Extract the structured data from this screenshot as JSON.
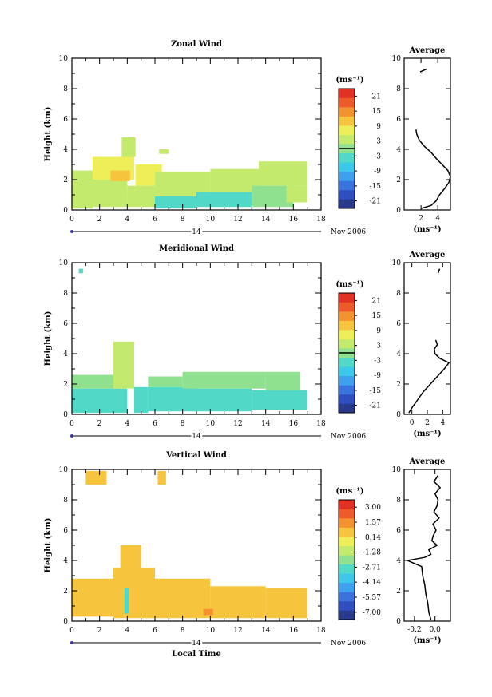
{
  "figure": {
    "colorbar_unit": "(ms⁻¹)",
    "average_title": "Average",
    "height_label": "Height (km)",
    "date_day": "14",
    "date_month": "Nov 2006",
    "local_time_label": "Local Time"
  },
  "chart_data": [
    {
      "type": "heatmap",
      "title": "Zonal Wind",
      "xlabel": "",
      "ylabel": "Height (km)",
      "xlim": [
        0,
        18
      ],
      "ylim": [
        0,
        10
      ],
      "x_ticks": [
        "0",
        "2",
        "4",
        "6",
        "8",
        "10",
        "12",
        "14",
        "16",
        "18"
      ],
      "y_ticks": [
        "0",
        "2",
        "4",
        "6",
        "8",
        "10"
      ],
      "colorbar": {
        "unit": "(ms⁻¹)",
        "ticks": [
          "21",
          "15",
          "9",
          "3",
          "-3",
          "-9",
          "-15",
          "-21"
        ],
        "range": [
          -24,
          24
        ],
        "marker": 0
      },
      "cells": [
        {
          "x0": 0,
          "x1": 1.5,
          "y0": 0.1,
          "y1": 2.6,
          "value": 3
        },
        {
          "x0": 1.5,
          "x1": 4,
          "y0": 0.2,
          "y1": 2.0,
          "value": 5
        },
        {
          "x0": 1.5,
          "x1": 4.5,
          "y0": 2.0,
          "y1": 3.5,
          "value": 6
        },
        {
          "x0": 2.8,
          "x1": 4.2,
          "y0": 1.9,
          "y1": 2.6,
          "value": 10
        },
        {
          "x0": 3.6,
          "x1": 4.6,
          "y0": 3.5,
          "y1": 4.8,
          "value": 4
        },
        {
          "x0": 4.6,
          "x1": 6.5,
          "y0": 1.6,
          "y1": 3.0,
          "value": 6
        },
        {
          "x0": 4,
          "x1": 6,
          "y0": 0.2,
          "y1": 1.6,
          "value": 2
        },
        {
          "x0": 6.3,
          "x1": 7,
          "y0": 3.7,
          "y1": 4.0,
          "value": 3
        },
        {
          "x0": 6,
          "x1": 9,
          "y0": 0.1,
          "y1": 0.9,
          "value": -3
        },
        {
          "x0": 6,
          "x1": 10,
          "y0": 0.9,
          "y1": 2.5,
          "value": 2
        },
        {
          "x0": 9,
          "x1": 13,
          "y0": 0.2,
          "y1": 1.2,
          "value": -4
        },
        {
          "x0": 10,
          "x1": 13.5,
          "y0": 1.2,
          "y1": 2.7,
          "value": 3
        },
        {
          "x0": 13,
          "x1": 16,
          "y0": 0.2,
          "y1": 1.6,
          "value": 1
        },
        {
          "x0": 13.5,
          "x1": 17,
          "y0": 1.6,
          "y1": 3.2,
          "value": 4
        },
        {
          "x0": 15.5,
          "x1": 17,
          "y0": 0.5,
          "y1": 1.6,
          "value": 3
        }
      ],
      "average_profile": {
        "title": "Average",
        "xlabel": "(ms⁻¹)",
        "xlim": [
          0,
          5.5
        ],
        "x_ticks": [
          "2",
          "4"
        ],
        "height": [
          0.1,
          0.3,
          0.6,
          1.0,
          1.4,
          1.8,
          2.2,
          2.6,
          3.0,
          3.4,
          3.8,
          4.2,
          4.6,
          5.0,
          5.3
        ],
        "value": [
          2.0,
          3.2,
          3.8,
          4.2,
          4.8,
          5.3,
          5.5,
          5.2,
          4.5,
          3.8,
          3.2,
          2.4,
          1.8,
          1.5,
          1.4
        ],
        "upper_height": [
          9.1,
          9.3
        ],
        "upper_value": [
          1.9,
          2.7
        ]
      }
    },
    {
      "type": "heatmap",
      "title": "Meridional Wind",
      "xlabel": "",
      "ylabel": "Height (km)",
      "xlim": [
        0,
        18
      ],
      "ylim": [
        0,
        10
      ],
      "x_ticks": [
        "0",
        "2",
        "4",
        "6",
        "8",
        "10",
        "12",
        "14",
        "16",
        "18"
      ],
      "y_ticks": [
        "0",
        "2",
        "4",
        "6",
        "8",
        "10"
      ],
      "colorbar": {
        "unit": "(ms⁻¹)",
        "ticks": [
          "21",
          "15",
          "9",
          "3",
          "-3",
          "-9",
          "-15",
          "-21"
        ],
        "range": [
          -24,
          24
        ],
        "marker": 0
      },
      "cells": [
        {
          "x0": 0.5,
          "x1": 0.8,
          "y0": 9.3,
          "y1": 9.6,
          "value": -2
        },
        {
          "x0": 0,
          "x1": 4,
          "y0": 0.1,
          "y1": 1.7,
          "value": -4
        },
        {
          "x0": 0,
          "x1": 3,
          "y0": 1.7,
          "y1": 2.6,
          "value": 1
        },
        {
          "x0": 3,
          "x1": 4.5,
          "y0": 1.7,
          "y1": 4.8,
          "value": 2
        },
        {
          "x0": 4.5,
          "x1": 5.5,
          "y0": 0.1,
          "y1": 1.8,
          "value": -4
        },
        {
          "x0": 5.5,
          "x1": 9,
          "y0": 0.2,
          "y1": 1.8,
          "value": -4
        },
        {
          "x0": 5.5,
          "x1": 8,
          "y0": 1.8,
          "y1": 2.5,
          "value": 1
        },
        {
          "x0": 9,
          "x1": 13,
          "y0": 0.2,
          "y1": 1.7,
          "value": -3
        },
        {
          "x0": 8,
          "x1": 14,
          "y0": 1.7,
          "y1": 2.8,
          "value": 1
        },
        {
          "x0": 13,
          "x1": 17,
          "y0": 0.3,
          "y1": 1.6,
          "value": -3
        },
        {
          "x0": 14,
          "x1": 16.5,
          "y0": 1.6,
          "y1": 2.8,
          "value": 1
        }
      ],
      "average_profile": {
        "title": "Average",
        "xlabel": "(ms⁻¹)",
        "xlim": [
          -1,
          5
        ],
        "x_ticks": [
          "0",
          "2",
          "4"
        ],
        "height": [
          0.1,
          0.5,
          1.0,
          1.5,
          2.0,
          2.5,
          3.0,
          3.4,
          3.7,
          4.0,
          4.3,
          4.6,
          4.9
        ],
        "value": [
          -0.4,
          0.1,
          0.8,
          1.5,
          2.4,
          3.3,
          4.2,
          4.8,
          3.6,
          3.0,
          2.9,
          3.3,
          3.1
        ],
        "upper_height": [
          9.3,
          9.6
        ],
        "upper_value": [
          3.4,
          3.6
        ]
      }
    },
    {
      "type": "heatmap",
      "title": "Vertical Wind",
      "xlabel": "Local Time",
      "ylabel": "Height (km)",
      "xlim": [
        0,
        18
      ],
      "ylim": [
        0,
        10
      ],
      "x_ticks": [
        "0",
        "2",
        "4",
        "6",
        "8",
        "10",
        "12",
        "14",
        "16",
        "18"
      ],
      "y_ticks": [
        "0",
        "2",
        "4",
        "6",
        "8",
        "10"
      ],
      "colorbar": {
        "unit": "(ms⁻¹)",
        "ticks": [
          "3.00",
          "1.57",
          "0.14",
          "-1.28",
          "-2.71",
          "-4.14",
          "-5.57",
          "-7.00"
        ],
        "range": [
          -7.7,
          3.7
        ],
        "marker": null
      },
      "cells": [
        {
          "x0": 0,
          "x1": 3,
          "y0": 0.3,
          "y1": 2.8,
          "value": 0.5
        },
        {
          "x0": 3,
          "x1": 6,
          "y0": 0.2,
          "y1": 3.5,
          "value": 0.6
        },
        {
          "x0": 3.5,
          "x1": 5,
          "y0": 3.5,
          "y1": 5.0,
          "value": 0.2
        },
        {
          "x0": 3.8,
          "x1": 4.1,
          "y0": 0.5,
          "y1": 2.2,
          "value": -2.6
        },
        {
          "x0": 6,
          "x1": 10,
          "y0": 0.2,
          "y1": 2.8,
          "value": 0.5
        },
        {
          "x0": 10,
          "x1": 14,
          "y0": 0.2,
          "y1": 2.3,
          "value": 0.6
        },
        {
          "x0": 14,
          "x1": 17,
          "y0": 0.2,
          "y1": 2.2,
          "value": 0.5
        },
        {
          "x0": 1,
          "x1": 2.5,
          "y0": 9.0,
          "y1": 9.9,
          "value": 0.4
        },
        {
          "x0": 6.2,
          "x1": 6.8,
          "y0": 9.0,
          "y1": 9.9,
          "value": 0.4
        },
        {
          "x0": 9.5,
          "x1": 10.2,
          "y0": 0.4,
          "y1": 0.8,
          "value": 1.6
        }
      ],
      "average_profile": {
        "title": "Average",
        "xlabel": "(ms⁻¹)",
        "xlim": [
          -0.3,
          0.15
        ],
        "x_ticks": [
          "-0.2",
          "0.0"
        ],
        "height": [
          0.1,
          0.6,
          1.2,
          1.8,
          2.4,
          3.0,
          3.6,
          4.0,
          4.2,
          4.4,
          4.7,
          5.0,
          5.3,
          5.6,
          6.0,
          6.4,
          6.8,
          7.2,
          7.6,
          8.0,
          8.4,
          8.8,
          9.2,
          9.6
        ],
        "value": [
          -0.04,
          -0.06,
          -0.07,
          -0.09,
          -0.1,
          -0.12,
          -0.13,
          -0.27,
          -0.1,
          -0.04,
          -0.06,
          0.02,
          -0.03,
          -0.02,
          0.01,
          -0.02,
          0.04,
          -0.01,
          0.02,
          0.03,
          0.0,
          0.05,
          -0.01,
          0.03
        ],
        "upper_height": [],
        "upper_value": []
      }
    }
  ]
}
